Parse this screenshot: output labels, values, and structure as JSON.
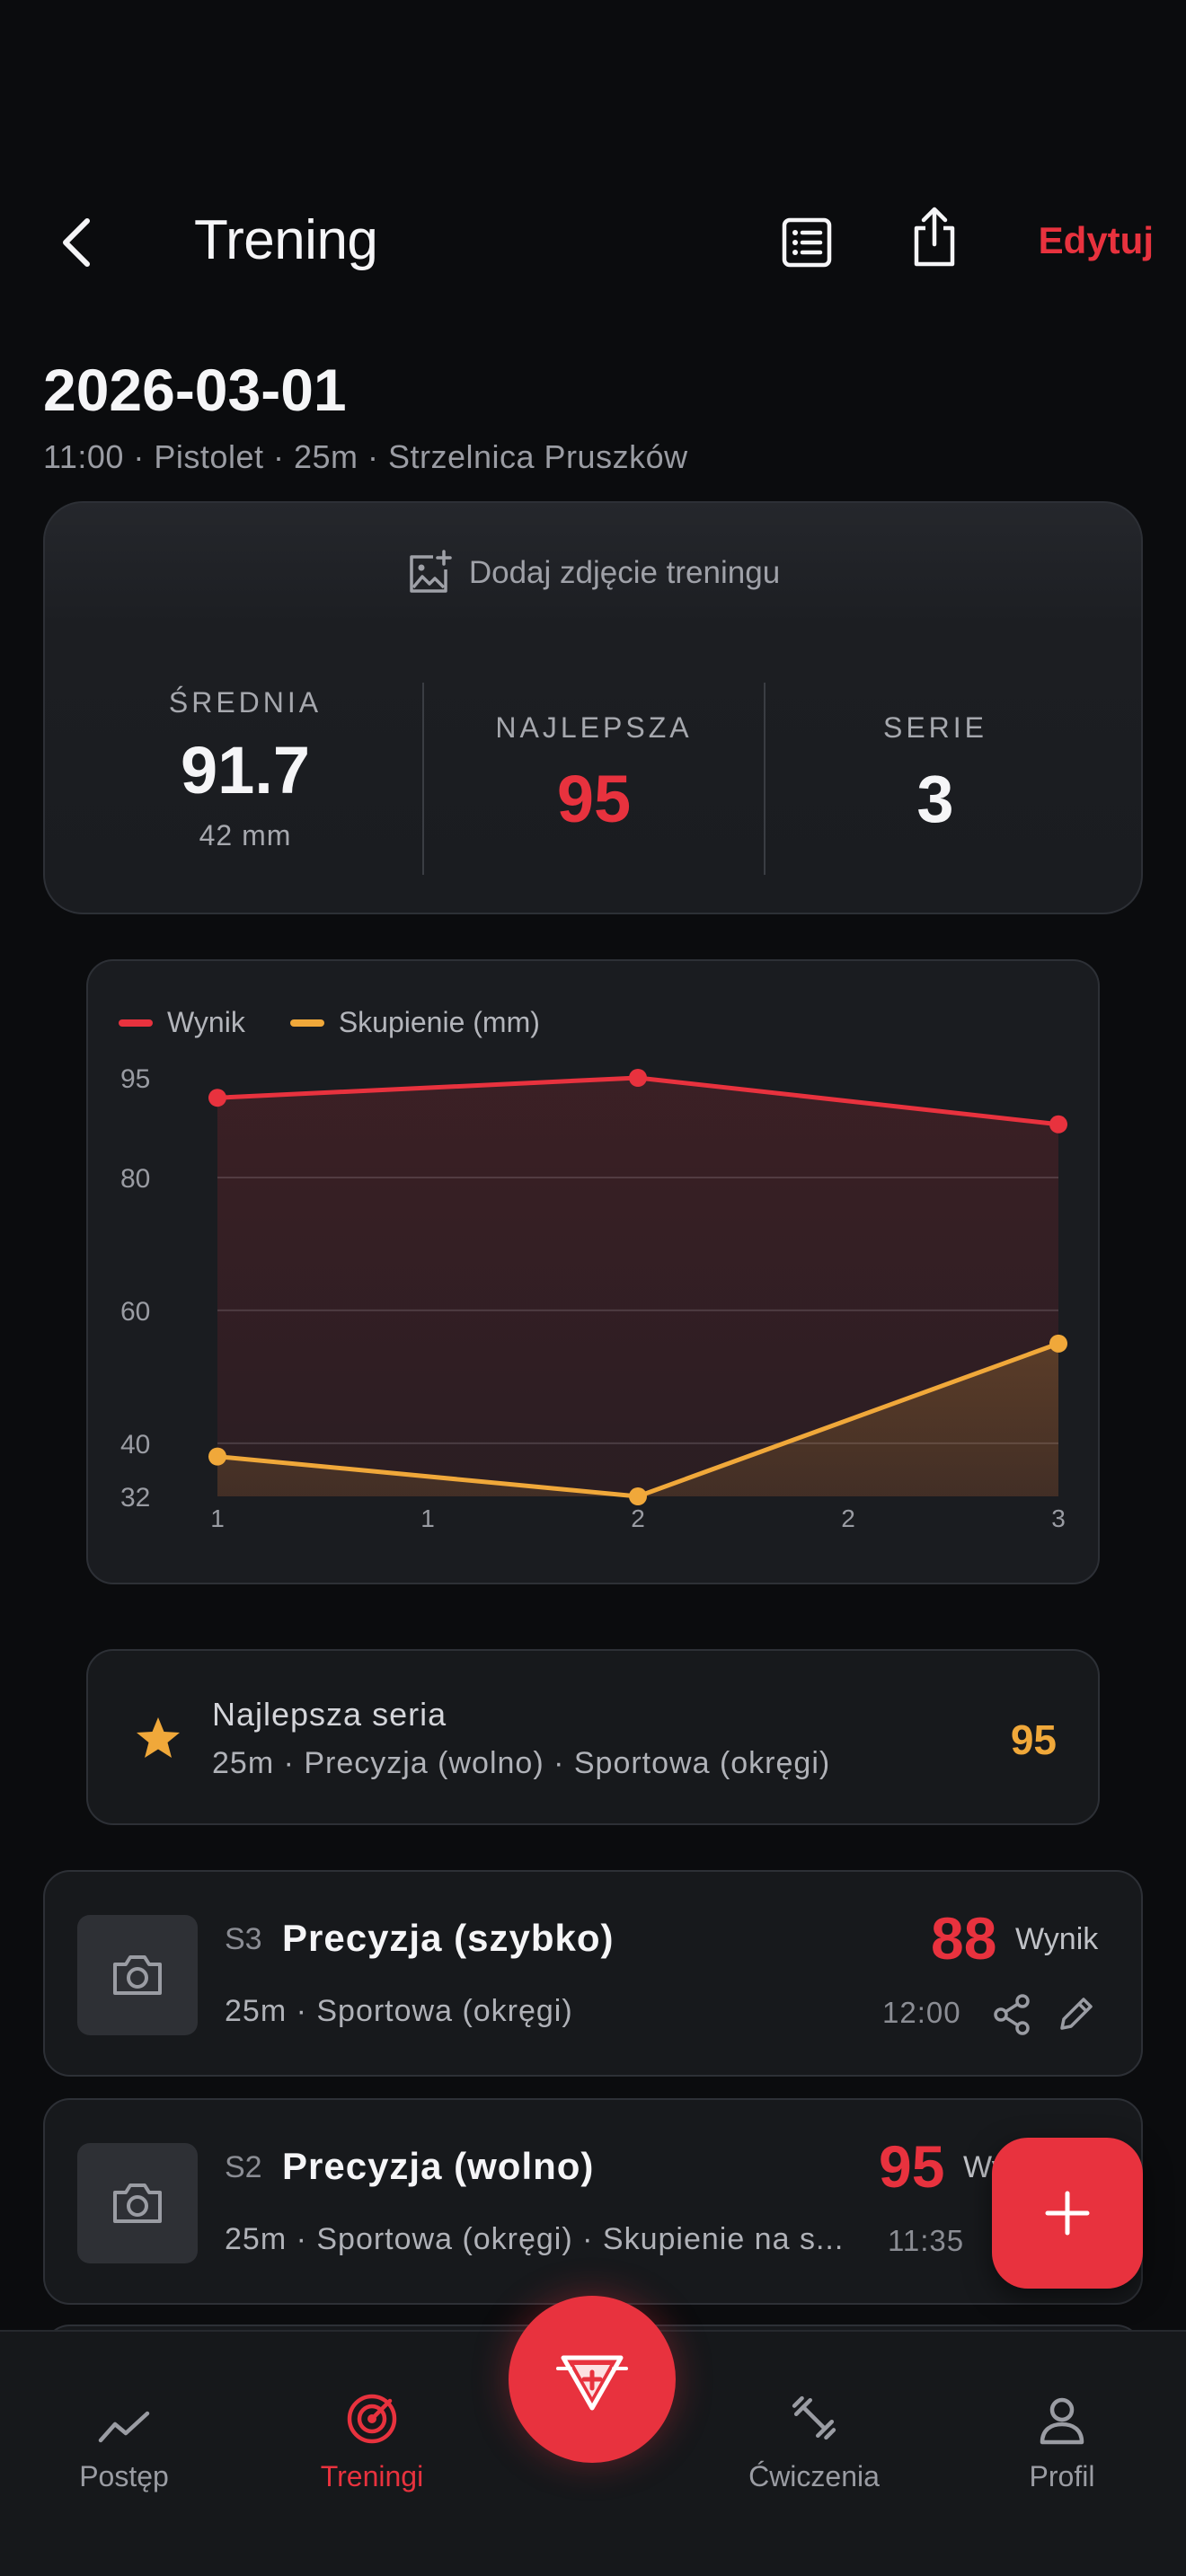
{
  "header": {
    "title": "Trening",
    "edit_label": "Edytuj",
    "icons": [
      "chevron-left-icon",
      "list-icon",
      "share-icon"
    ]
  },
  "session": {
    "date": "2026-03-01",
    "meta": "11:00 · Pistolet · 25m · Strzelnica Pruszków"
  },
  "summary": {
    "add_photo_label": "Dodaj zdjęcie treningu",
    "stats": [
      {
        "label": "ŚREDNIA",
        "value": "91.7",
        "sub": "42 mm"
      },
      {
        "label": "NAJLEPSZA",
        "value": "95"
      },
      {
        "label": "SERIE",
        "value": "3"
      }
    ]
  },
  "colors": {
    "accent": "#e8323e",
    "secondary": "#f0a83a",
    "background": "#0b0c0e",
    "card": "#1a1c20"
  },
  "chart_data": {
    "type": "line",
    "x": [
      1,
      2,
      3
    ],
    "x_tick_labels": [
      "1",
      "1",
      "2",
      "2",
      "3"
    ],
    "y_tick_labels": [
      "95",
      "80",
      "60",
      "40",
      "32"
    ],
    "ylim": [
      32,
      95
    ],
    "grid": true,
    "legend_position": "top-left",
    "series": [
      {
        "name": "Wynik",
        "values": [
          92,
          95,
          88
        ],
        "color": "#e8323e"
      },
      {
        "name": "Skupienie (mm)",
        "values": [
          38,
          32,
          55
        ],
        "color": "#f0a83a"
      }
    ]
  },
  "best_series": {
    "title": "Najlepsza seria",
    "subtitle": "25m · Precyzja (wolno) · Sportowa (okręgi)",
    "value": "95"
  },
  "series_list": [
    {
      "tag": "S3",
      "name": "Precyzja (szybko)",
      "subtitle": "25m · Sportowa (okręgi)",
      "score": "88",
      "score_label": "Wynik",
      "time": "12:00"
    },
    {
      "tag": "S2",
      "name": "Precyzja (wolno)",
      "subtitle": "25m · Sportowa (okręgi) · Skupienie na s...",
      "score": "95",
      "score_label": "Wy",
      "time": "11:35"
    }
  ],
  "nav": {
    "items": [
      {
        "label": "Postęp",
        "icon": "trend-icon"
      },
      {
        "label": "Treningi",
        "icon": "target-icon"
      },
      {
        "label": "Ćwiczenia",
        "icon": "dumbbell-icon"
      },
      {
        "label": "Profil",
        "icon": "person-icon"
      }
    ],
    "center_icon": "logo-icon"
  }
}
